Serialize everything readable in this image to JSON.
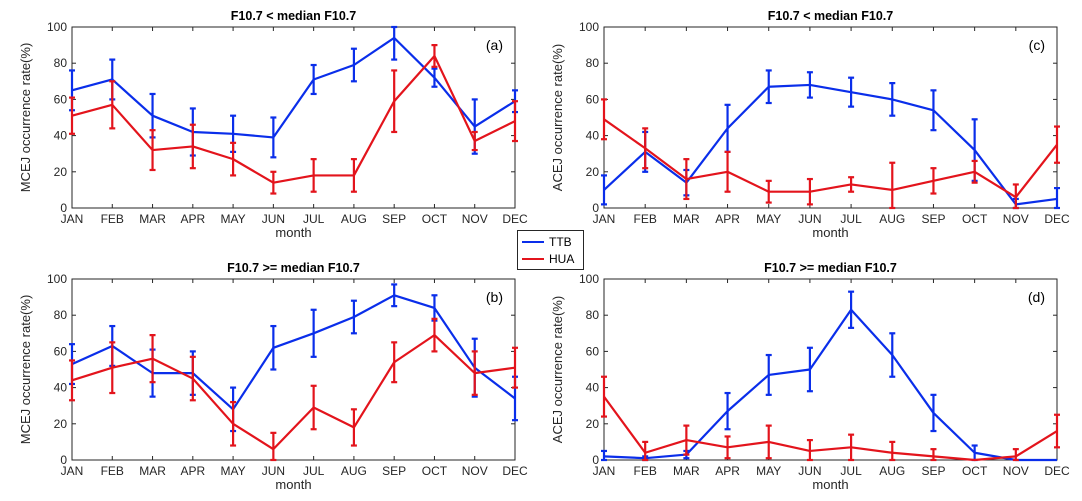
{
  "colors": {
    "TTB": "#0a2eea",
    "HUA": "#e3141c"
  },
  "legend": {
    "items": [
      "TTB",
      "HUA"
    ]
  },
  "chart_data": [
    {
      "panel": "a",
      "type": "line",
      "title": "F10.7 < median F10.7",
      "label": "(a)",
      "xlabel": "month",
      "ylabel": "MCEJ occurrence rate(%)",
      "categories": [
        "JAN",
        "FEB",
        "MAR",
        "APR",
        "MAY",
        "JUN",
        "JUL",
        "AUG",
        "SEP",
        "OCT",
        "NOV",
        "DEC"
      ],
      "ylim": [
        0,
        100
      ],
      "yticks": [
        0,
        20,
        40,
        60,
        80,
        100
      ],
      "series": [
        {
          "name": "TTB",
          "color": "#0a2eea",
          "values": [
            65,
            71,
            51,
            42,
            41,
            39,
            71,
            79,
            94,
            72,
            45,
            59
          ],
          "err": [
            11,
            11,
            12,
            13,
            10,
            11,
            8,
            9,
            12,
            5,
            15,
            6
          ]
        },
        {
          "name": "HUA",
          "color": "#e3141c",
          "values": [
            51,
            57,
            32,
            34,
            27,
            14,
            18,
            18,
            59,
            84,
            37,
            48
          ],
          "err": [
            10,
            13,
            11,
            12,
            9,
            6,
            9,
            9,
            17,
            6,
            5,
            11
          ]
        }
      ]
    },
    {
      "panel": "b",
      "type": "line",
      "title": "F10.7 >= median F10.7",
      "label": "(b)",
      "xlabel": "month",
      "ylabel": "MCEJ occurrence rate(%)",
      "categories": [
        "JAN",
        "FEB",
        "MAR",
        "APR",
        "MAY",
        "JUN",
        "JUL",
        "AUG",
        "SEP",
        "OCT",
        "NOV",
        "DEC"
      ],
      "ylim": [
        0,
        100
      ],
      "yticks": [
        0,
        20,
        40,
        60,
        80,
        100
      ],
      "series": [
        {
          "name": "TTB",
          "color": "#0a2eea",
          "values": [
            53,
            63,
            48,
            48,
            28,
            62,
            70,
            79,
            91,
            84,
            51,
            34
          ],
          "err": [
            11,
            11,
            13,
            12,
            12,
            12,
            13,
            9,
            6,
            7,
            16,
            12
          ]
        },
        {
          "name": "HUA",
          "color": "#e3141c",
          "values": [
            44,
            51,
            56,
            45,
            20,
            6,
            29,
            18,
            54,
            69,
            48,
            51
          ],
          "err": [
            11,
            14,
            13,
            12,
            12,
            9,
            12,
            10,
            11,
            9,
            12,
            11
          ]
        }
      ]
    },
    {
      "panel": "c",
      "type": "line",
      "title": "F10.7 < median F10.7",
      "label": "(c)",
      "xlabel": "month",
      "ylabel": "ACEJ occurrence rate(%)",
      "categories": [
        "JAN",
        "FEB",
        "MAR",
        "APR",
        "MAY",
        "JUN",
        "JUL",
        "AUG",
        "SEP",
        "OCT",
        "NOV",
        "DEC"
      ],
      "ylim": [
        0,
        100
      ],
      "yticks": [
        0,
        20,
        40,
        60,
        80,
        100
      ],
      "series": [
        {
          "name": "TTB",
          "color": "#0a2eea",
          "values": [
            10,
            31,
            14,
            44,
            67,
            68,
            64,
            60,
            54,
            32,
            2,
            5
          ],
          "err": [
            8,
            11,
            7,
            13,
            9,
            7,
            8,
            9,
            11,
            17,
            3,
            6
          ]
        },
        {
          "name": "HUA",
          "color": "#e3141c",
          "values": [
            49,
            33,
            16,
            20,
            9,
            9,
            13,
            10,
            15,
            20,
            6,
            35
          ],
          "err": [
            11,
            11,
            11,
            11,
            6,
            7,
            4,
            15,
            7,
            6,
            7,
            10
          ]
        }
      ]
    },
    {
      "panel": "d",
      "type": "line",
      "title": "F10.7 >= median F10.7",
      "label": "(d)",
      "xlabel": "month",
      "ylabel": "ACEJ occurrence rate(%)",
      "categories": [
        "JAN",
        "FEB",
        "MAR",
        "APR",
        "MAY",
        "JUN",
        "JUL",
        "AUG",
        "SEP",
        "OCT",
        "NOV",
        "DEC"
      ],
      "ylim": [
        0,
        100
      ],
      "yticks": [
        0,
        20,
        40,
        60,
        80,
        100
      ],
      "series": [
        {
          "name": "TTB",
          "color": "#0a2eea",
          "values": [
            2,
            1,
            3,
            27,
            47,
            50,
            83,
            58,
            26,
            4,
            0,
            0
          ],
          "err": [
            3,
            1,
            2,
            10,
            11,
            12,
            10,
            12,
            10,
            4,
            0,
            0
          ]
        },
        {
          "name": "HUA",
          "color": "#e3141c",
          "values": [
            35,
            4,
            11,
            7,
            10,
            5,
            7,
            4,
            2,
            0,
            2,
            16
          ],
          "err": [
            11,
            6,
            8,
            6,
            9,
            6,
            7,
            6,
            4,
            0,
            4,
            9
          ]
        }
      ]
    }
  ]
}
